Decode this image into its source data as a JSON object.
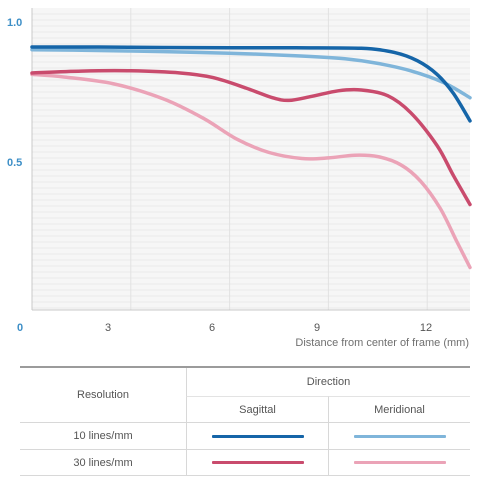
{
  "chart_data": {
    "type": "line",
    "xlabel": "Distance from center of frame (mm)",
    "ylabel": "",
    "xlim": [
      0,
      13.3
    ],
    "ylim": [
      0,
      1.0
    ],
    "x_ticks": [
      "0",
      "3",
      "6",
      "9",
      "12"
    ],
    "x_tick_values": [
      0,
      3,
      6,
      9,
      12
    ],
    "y_ticks": [
      "0.5",
      "1.0"
    ],
    "y_tick_values": [
      0.5,
      1.0
    ],
    "y_zero_label": "0",
    "grid": "horizontal",
    "series": [
      {
        "color": "#1565a8",
        "points": [
          [
            0,
            0.96
          ],
          [
            2,
            0.96
          ],
          [
            4,
            0.958
          ],
          [
            6,
            0.957
          ],
          [
            8,
            0.957
          ],
          [
            10,
            0.955
          ],
          [
            11,
            0.94
          ],
          [
            11.7,
            0.91
          ],
          [
            12.3,
            0.86
          ],
          [
            12.8,
            0.79
          ],
          [
            13.3,
            0.69
          ]
        ]
      },
      {
        "color": "#7fb5da",
        "points": [
          [
            0,
            0.95
          ],
          [
            2,
            0.947
          ],
          [
            4,
            0.943
          ],
          [
            6,
            0.937
          ],
          [
            8,
            0.928
          ],
          [
            9.5,
            0.917
          ],
          [
            10.5,
            0.9
          ],
          [
            11.5,
            0.873
          ],
          [
            12.5,
            0.83
          ],
          [
            13.3,
            0.775
          ]
        ]
      },
      {
        "color": "#c94b6d",
        "points": [
          [
            0,
            0.865
          ],
          [
            1.5,
            0.872
          ],
          [
            3,
            0.873
          ],
          [
            4.5,
            0.865
          ],
          [
            5.5,
            0.848
          ],
          [
            6.5,
            0.81
          ],
          [
            7.3,
            0.775
          ],
          [
            7.8,
            0.765
          ],
          [
            8.5,
            0.78
          ],
          [
            9.3,
            0.8
          ],
          [
            10,
            0.803
          ],
          [
            10.8,
            0.782
          ],
          [
            11.5,
            0.72
          ],
          [
            12.3,
            0.6
          ],
          [
            12.8,
            0.49
          ],
          [
            13.3,
            0.385
          ]
        ]
      },
      {
        "color": "#eba3b7",
        "points": [
          [
            0,
            0.86
          ],
          [
            1,
            0.85
          ],
          [
            2.5,
            0.825
          ],
          [
            4,
            0.77
          ],
          [
            5.2,
            0.7
          ],
          [
            6.2,
            0.625
          ],
          [
            7.2,
            0.575
          ],
          [
            8.2,
            0.553
          ],
          [
            9,
            0.555
          ],
          [
            9.8,
            0.565
          ],
          [
            10.5,
            0.56
          ],
          [
            11.2,
            0.53
          ],
          [
            11.8,
            0.47
          ],
          [
            12.4,
            0.37
          ],
          [
            12.9,
            0.25
          ],
          [
            13.3,
            0.155
          ]
        ]
      }
    ],
    "legend": {
      "header_left": "Resolution",
      "header_right": "Direction",
      "col_sagittal": "Sagittal",
      "col_meridional": "Meridional",
      "row1": "10 lines/mm",
      "row2": "30 lines/mm",
      "colors": {
        "r1_sag": "#1565a8",
        "r1_mer": "#7fb5da",
        "r2_sag": "#c94b6d",
        "r2_mer": "#eba3b7"
      }
    }
  }
}
